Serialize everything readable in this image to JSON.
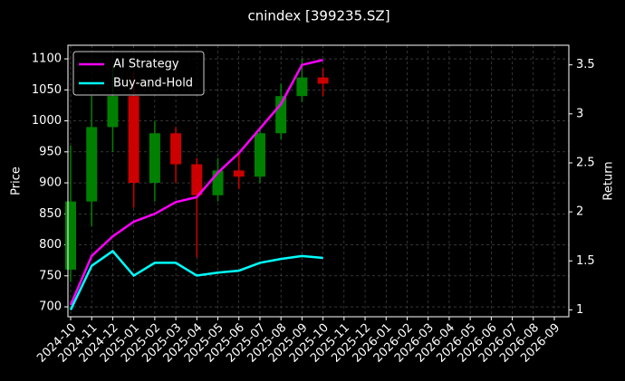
{
  "chart_data": {
    "type": "candlestick",
    "title": "cnindex [399235.SZ]",
    "ylabel": "Price",
    "y2label": "Return",
    "x": [
      "2024-10",
      "2024-11",
      "2024-12",
      "2025-01",
      "2025-02",
      "2025-03",
      "2025-04",
      "2025-05",
      "2025-06",
      "2025-07",
      "2025-08",
      "2025-09",
      "2025-10"
    ],
    "open": [
      760,
      870,
      990,
      1040,
      900,
      980,
      930,
      880,
      920,
      910,
      980,
      1040,
      1070
    ],
    "high": [
      960,
      1040,
      1090,
      1080,
      1000,
      990,
      940,
      940,
      950,
      990,
      1060,
      1100,
      1085
    ],
    "low": [
      740,
      830,
      950,
      860,
      870,
      900,
      780,
      870,
      890,
      900,
      970,
      1030,
      1040
    ],
    "close": [
      870,
      990,
      1040,
      900,
      980,
      930,
      880,
      920,
      910,
      980,
      1040,
      1070,
      1060
    ],
    "up_color": "#008000",
    "down_color": "#cc0000",
    "series": [
      {
        "name": "AI Strategy",
        "color": "#ff00ff",
        "axis": "y2",
        "values": [
          1.05,
          1.55,
          1.75,
          1.9,
          1.98,
          2.1,
          2.15,
          2.4,
          2.6,
          2.85,
          3.1,
          3.5,
          3.55
        ]
      },
      {
        "name": "Buy-and-Hold",
        "color": "#00ffff",
        "axis": "y2",
        "values": [
          1.0,
          1.45,
          1.6,
          1.35,
          1.48,
          1.48,
          1.35,
          1.38,
          1.4,
          1.48,
          1.52,
          1.55,
          1.53
        ]
      }
    ],
    "xticks": [
      "2024-10",
      "2024-11",
      "2024-12",
      "2025-01",
      "2025-02",
      "2025-03",
      "2025-04",
      "2025-05",
      "2025-06",
      "2025-07",
      "2025-08",
      "2025-09",
      "2025-10",
      "2025-11",
      "2025-12",
      "2026-01",
      "2026-02",
      "2026-03",
      "2026-04",
      "2026-05",
      "2026-06",
      "2026-07",
      "2026-08",
      "2026-09"
    ],
    "ylim": [
      684,
      1122
    ],
    "yticks": [
      700,
      750,
      800,
      850,
      900,
      950,
      1000,
      1050,
      1100
    ],
    "y2lim": [
      0.93,
      3.7
    ],
    "y2ticks": [
      1.0,
      1.5,
      2.0,
      2.5,
      3.0,
      3.5
    ],
    "grid": true,
    "legend": "upper left"
  }
}
